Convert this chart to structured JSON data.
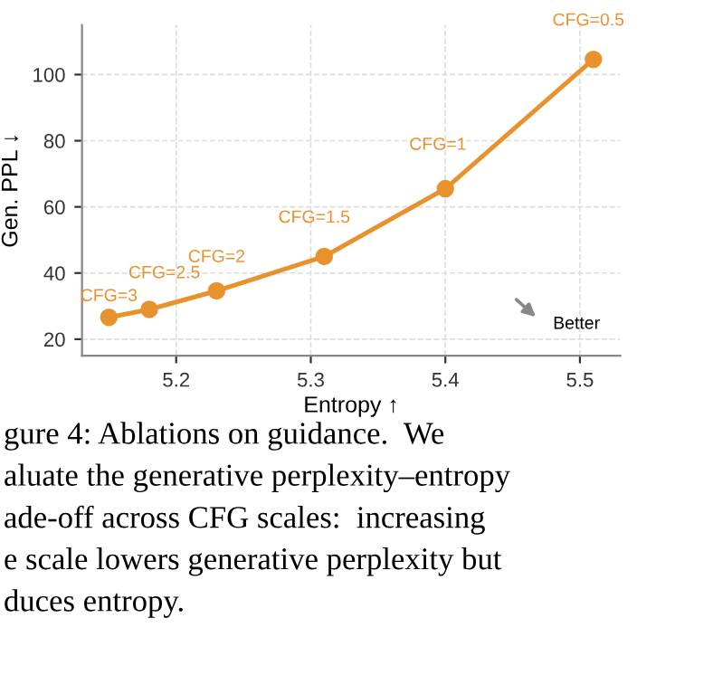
{
  "chart_data": {
    "type": "line",
    "xlabel": "Entropy ↑",
    "ylabel": "Gen. PPL ↓",
    "x": [
      5.15,
      5.18,
      5.23,
      5.31,
      5.4,
      5.51
    ],
    "series": [
      {
        "color": "#e8922e",
        "values": [
          26.6,
          29,
          34.6,
          45,
          65.5,
          104.6
        ]
      }
    ],
    "value_labels": [
      "CFG=3",
      "CFG=2.5",
      "CFG=2",
      "CFG=1.5",
      "CFG=1",
      "CFG=0.5"
    ],
    "marker": "circle",
    "line_style": "solid",
    "grid": true,
    "xlim": [
      5.13,
      5.53
    ],
    "xticks": [
      5.2,
      5.3,
      5.4,
      5.5
    ],
    "ylim": [
      15,
      115
    ],
    "yticks": [
      20,
      40,
      60,
      80,
      100
    ],
    "annotations": [
      "Better",
      "gure 4: Ablations on guidance.  We",
      "aluate the generative perplexity–entropy",
      "ade-off across CFG scales:  increasing",
      "e scale lowers generative perplexity but",
      "duces entropy."
    ]
  }
}
